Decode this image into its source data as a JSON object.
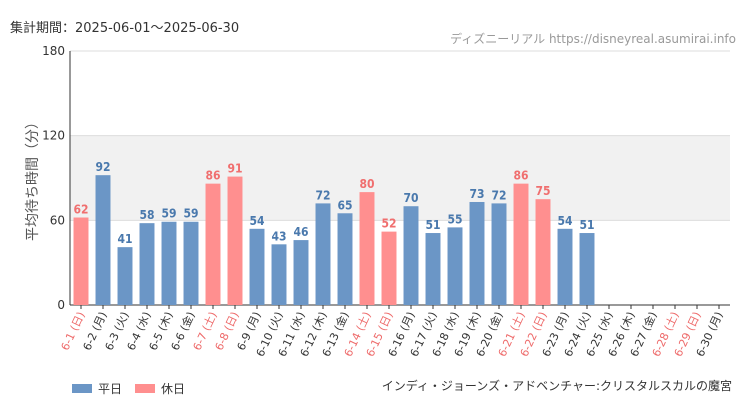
{
  "period_label": "集計期間：2025-06-01～2025-06-30",
  "watermark": "ディズニーリアル https://disneyreal.asumirai.info",
  "attraction": "インディ・ジョーンズ・アドベンチャー:クリスタルスカルの魔宮",
  "colors": {
    "weekday": "#6b96c6",
    "holiday": "#ff8f8f",
    "weekday_label": "#4a79ad",
    "holiday_label": "#f06f6f",
    "holiday_tick": "#ee6a6a",
    "grid": "#dddddd",
    "band": "#f1f1f1",
    "axis": "#333333"
  },
  "legend": [
    {
      "label": "平日",
      "color": "#6b96c6"
    },
    {
      "label": "休日",
      "color": "#ff8f8f"
    }
  ],
  "chart_data": {
    "type": "bar",
    "ylabel": "平均待ち時間（分）",
    "xlabel": "",
    "ylim": [
      0,
      180
    ],
    "yticks": [
      0,
      60,
      120,
      180
    ],
    "highlight_band": [
      60,
      120
    ],
    "categories": [
      "6-1 (日)",
      "6-2 (月)",
      "6-3 (火)",
      "6-4 (水)",
      "6-5 (木)",
      "6-6 (金)",
      "6-7 (土)",
      "6-8 (日)",
      "6-9 (月)",
      "6-10 (火)",
      "6-11 (水)",
      "6-12 (木)",
      "6-13 (金)",
      "6-14 (土)",
      "6-15 (日)",
      "6-16 (月)",
      "6-17 (火)",
      "6-18 (水)",
      "6-19 (木)",
      "6-20 (金)",
      "6-21 (土)",
      "6-22 (日)",
      "6-23 (月)",
      "6-24 (火)",
      "6-25 (水)",
      "6-26 (木)",
      "6-27 (金)",
      "6-28 (土)",
      "6-29 (日)",
      "6-30 (月)"
    ],
    "values": [
      62,
      92,
      41,
      58,
      59,
      59,
      86,
      91,
      54,
      43,
      46,
      72,
      65,
      80,
      52,
      70,
      51,
      55,
      73,
      72,
      86,
      75,
      54,
      51,
      null,
      null,
      null,
      null,
      null,
      null
    ],
    "day_type": [
      "holiday",
      "weekday",
      "weekday",
      "weekday",
      "weekday",
      "weekday",
      "holiday",
      "holiday",
      "weekday",
      "weekday",
      "weekday",
      "weekday",
      "weekday",
      "holiday",
      "holiday",
      "weekday",
      "weekday",
      "weekday",
      "weekday",
      "weekday",
      "holiday",
      "holiday",
      "weekday",
      "weekday",
      "weekday",
      "weekday",
      "weekday",
      "holiday",
      "holiday",
      "weekday"
    ],
    "series": [
      {
        "name": "平日",
        "color": "#6b96c6"
      },
      {
        "name": "休日",
        "color": "#ff8f8f"
      }
    ],
    "legend_position": "bottom-left"
  }
}
